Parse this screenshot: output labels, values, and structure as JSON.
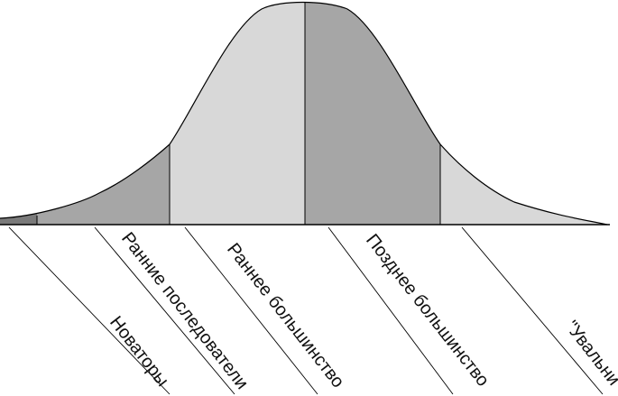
{
  "diagram": {
    "segments": [
      {
        "id": "innovators",
        "label": "Новаторы",
        "shade": "#7a7a7a"
      },
      {
        "id": "early-adopters",
        "label": "Ранние последователи",
        "shade": "#a6a6a6"
      },
      {
        "id": "early-majority",
        "label": "Раннее большинство",
        "shade": "#d8d8d8"
      },
      {
        "id": "late-majority",
        "label": "Позднее большинство",
        "shade": "#a6a6a6"
      },
      {
        "id": "laggards",
        "label": "\"Увальни\"",
        "shade": "#d8d8d8"
      }
    ],
    "colors": {
      "outline": "#000000",
      "leader_lines": "#000000",
      "text": "#111111"
    }
  }
}
